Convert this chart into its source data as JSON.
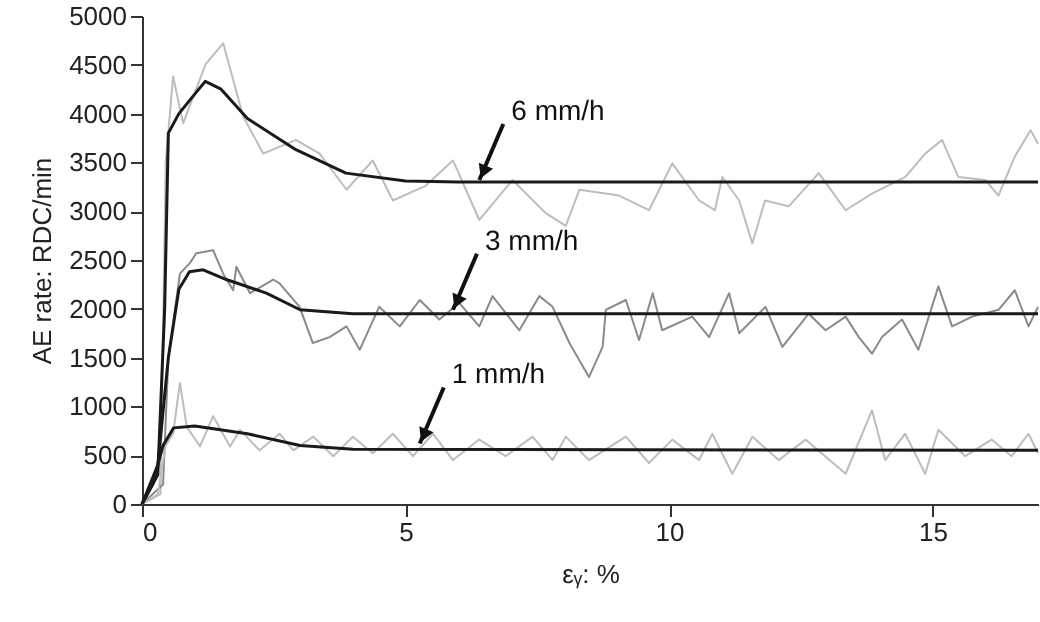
{
  "chart_data": {
    "type": "line",
    "xlabel": "εᵧ: %",
    "ylabel": "AE rate: RDC/min",
    "xlim": [
      0,
      17
    ],
    "xticks": [
      0,
      5,
      10,
      15
    ],
    "ylim": [
      0,
      5000
    ],
    "yticks": [
      0,
      500,
      1000,
      1500,
      2000,
      2500,
      3000,
      3500,
      4000,
      4500,
      5000
    ],
    "grid": false,
    "series": [
      {
        "color": "#bdbdbd",
        "x": [
          0,
          0.35,
          0.45,
          0.59,
          0.78,
          1.21,
          1.54,
          1.92,
          2.3,
          2.92,
          3.37,
          3.88,
          4.38,
          4.76,
          5.38,
          5.9,
          6.4,
          7.03,
          7.66,
          8.04,
          8.3,
          9.05,
          9.62,
          10.06,
          10.57,
          10.87,
          11.01,
          11.33,
          11.58,
          11.82,
          12.27,
          12.84,
          13.35,
          13.85,
          14.48,
          14.86,
          15.18,
          15.49,
          16.0,
          16.25,
          16.56,
          16.86,
          17
        ],
        "values": [
          0,
          100,
          3500,
          4380,
          3900,
          4510,
          4720,
          3970,
          3590,
          3730,
          3590,
          3220,
          3520,
          3110,
          3260,
          3520,
          2910,
          3320,
          2980,
          2850,
          3220,
          3160,
          3010,
          3490,
          3110,
          3010,
          3350,
          3110,
          2670,
          3110,
          3050,
          3390,
          3010,
          3180,
          3350,
          3590,
          3730,
          3350,
          3320,
          3160,
          3560,
          3830,
          3690
        ]
      },
      {
        "color": "#8a8a8a",
        "x": [
          0,
          0.4,
          0.5,
          0.72,
          0.91,
          1.03,
          1.35,
          1.54,
          1.73,
          1.79,
          2.05,
          2.49,
          2.61,
          2.99,
          3.24,
          3.56,
          3.88,
          4.13,
          4.5,
          4.89,
          5.27,
          5.64,
          6.02,
          6.4,
          6.65,
          7.16,
          7.54,
          7.79,
          8.11,
          8.48,
          8.74,
          8.8,
          9.18,
          9.43,
          9.69,
          9.87,
          10.44,
          10.76,
          11.14,
          11.33,
          11.83,
          12.15,
          12.65,
          12.97,
          13.35,
          13.6,
          13.85,
          14.04,
          14.42,
          14.73,
          15.11,
          15.37,
          15.75,
          16.25,
          16.56,
          16.82,
          17
        ],
        "values": [
          0,
          200,
          1500,
          2360,
          2470,
          2570,
          2600,
          2360,
          2190,
          2430,
          2160,
          2300,
          2260,
          2020,
          1650,
          1710,
          1820,
          1580,
          2020,
          1820,
          2090,
          1890,
          2060,
          1820,
          2130,
          1780,
          2130,
          2020,
          1650,
          1300,
          1610,
          1990,
          2090,
          1680,
          2160,
          1780,
          1920,
          1710,
          2160,
          1750,
          2020,
          1610,
          1950,
          1780,
          1920,
          1710,
          1540,
          1710,
          1890,
          1580,
          2230,
          1820,
          1920,
          1990,
          2190,
          1820,
          2020
        ]
      },
      {
        "color": "#bdbdbd",
        "x": [
          0,
          0.3,
          0.45,
          0.59,
          0.72,
          0.85,
          1.1,
          1.35,
          1.67,
          1.86,
          2.23,
          2.61,
          2.87,
          3.25,
          3.63,
          4.0,
          4.38,
          4.76,
          5.14,
          5.52,
          5.9,
          6.4,
          6.9,
          7.41,
          7.79,
          8.04,
          8.48,
          9.18,
          9.62,
          10.06,
          10.57,
          10.82,
          11.2,
          11.58,
          12.08,
          12.59,
          13.35,
          13.85,
          14.1,
          14.48,
          14.86,
          15.11,
          15.62,
          16.12,
          16.5,
          16.82,
          17
        ],
        "values": [
          0,
          100,
          600,
          720,
          1240,
          790,
          590,
          900,
          590,
          760,
          550,
          720,
          550,
          690,
          490,
          690,
          520,
          720,
          490,
          720,
          450,
          660,
          490,
          690,
          450,
          690,
          450,
          690,
          420,
          660,
          450,
          720,
          310,
          690,
          450,
          660,
          310,
          960,
          450,
          720,
          310,
          760,
          490,
          660,
          490,
          720,
          520
        ]
      },
      {
        "color": "#1a1a1a",
        "x": [
          0,
          0.3,
          0.43,
          0.5,
          0.7,
          1.0,
          1.2,
          1.5,
          2.0,
          2.92,
          3.87,
          5,
          6,
          17
        ],
        "values": [
          0,
          300,
          2000,
          3800,
          4000,
          4200,
          4330,
          4250,
          3950,
          3630,
          3390,
          3310,
          3300,
          3300
        ]
      },
      {
        "color": "#1a1a1a",
        "x": [
          0,
          0.3,
          0.5,
          0.7,
          0.9,
          1.16,
          1.6,
          2.36,
          3,
          4,
          5,
          17
        ],
        "values": [
          0,
          400,
          1500,
          2200,
          2380,
          2400,
          2300,
          2160,
          1990,
          1950,
          1950,
          1950
        ]
      },
      {
        "color": "#1a1a1a",
        "x": [
          0,
          0.2,
          0.4,
          0.6,
          1.0,
          2.0,
          3.0,
          4.0,
          17
        ],
        "values": [
          0,
          200,
          600,
          780,
          800,
          720,
          600,
          560,
          550
        ]
      }
    ],
    "annotations": [
      {
        "text": "6 mm/h",
        "x": 6.4,
        "y": 3320
      },
      {
        "text": "3 mm/h",
        "x": 5.9,
        "y": 1990
      },
      {
        "text": "1 mm/h",
        "x": 5.27,
        "y": 620
      }
    ]
  }
}
